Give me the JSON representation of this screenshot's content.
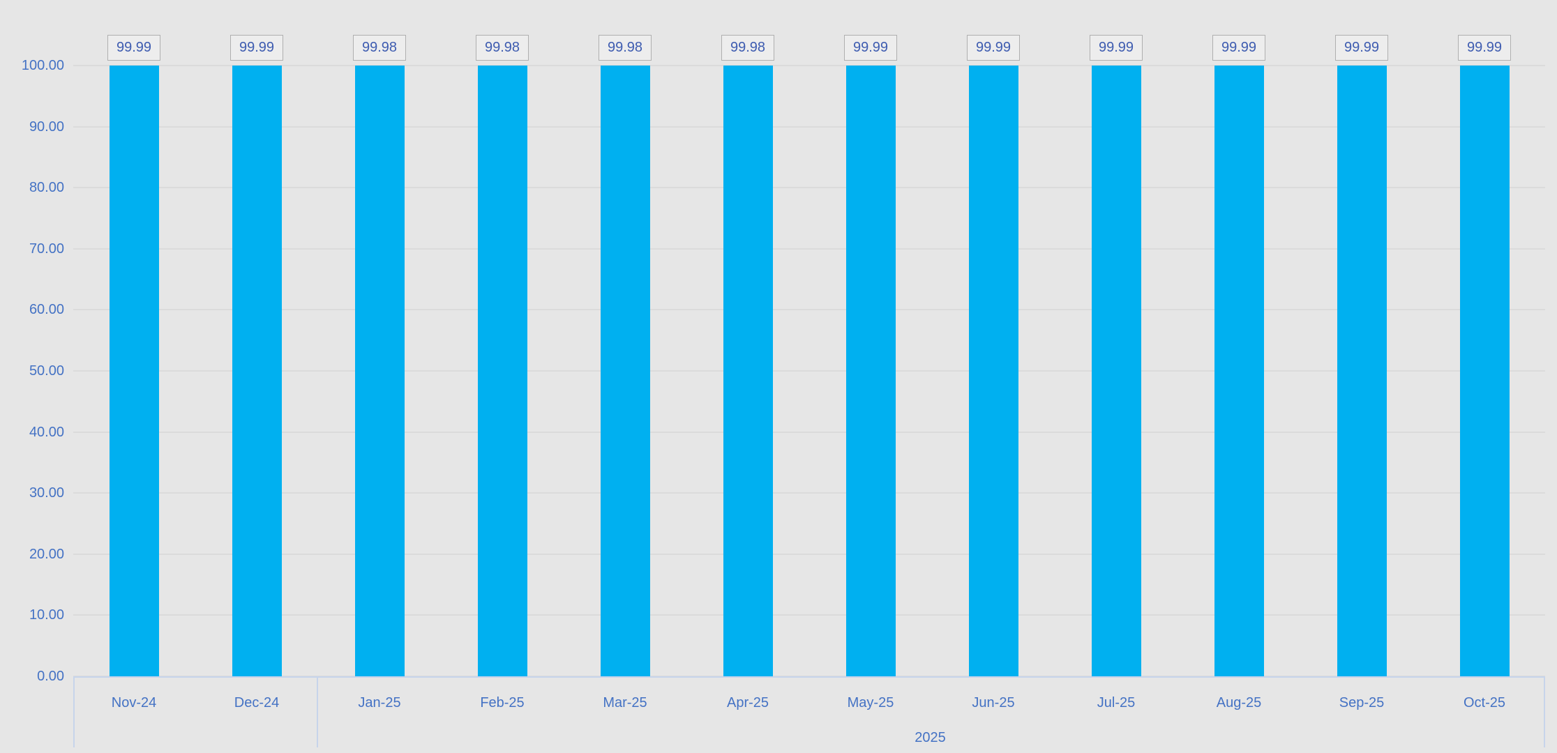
{
  "chart_data": {
    "type": "bar",
    "title": "",
    "categories": [
      "Nov-24",
      "Dec-24",
      "Jan-25",
      "Feb-25",
      "Mar-25",
      "Apr-25",
      "May-25",
      "Jun-25",
      "Jul-25",
      "Aug-25",
      "Sep-25",
      "Oct-25"
    ],
    "values": [
      99.99,
      99.99,
      99.98,
      99.98,
      99.98,
      99.98,
      99.99,
      99.99,
      99.99,
      99.99,
      99.99,
      99.99
    ],
    "data_labels": [
      "99.99",
      "99.99",
      "99.98",
      "99.98",
      "99.98",
      "99.98",
      "99.99",
      "99.99",
      "99.99",
      "99.99",
      "99.99",
      "99.99"
    ],
    "xlabel": "",
    "ylabel": "",
    "y_axis": {
      "min": 0,
      "max": 100,
      "step": 10,
      "tick_labels_top_to_bottom": [
        "100.00",
        "90.00",
        "80.00",
        "70.00",
        "60.00",
        "50.00",
        "40.00",
        "30.00",
        "20.00",
        "10.00",
        "0.00"
      ]
    },
    "x_axis": {
      "year_group_label": "2025",
      "year_group_first_category": "Jan-25",
      "year_group_last_category": "Oct-25"
    },
    "legend": "none",
    "grid": true,
    "colors": {
      "bar": "#00B0F0",
      "axis_text": "#4472C4",
      "value_text": "#3E5CB0",
      "background": "#E6E6E6",
      "gridline": "#DBDBDB",
      "axis_line": "#C7D4EB",
      "label_box_border": "#AFAFAF",
      "label_box_fill": "#EDEDED"
    }
  }
}
